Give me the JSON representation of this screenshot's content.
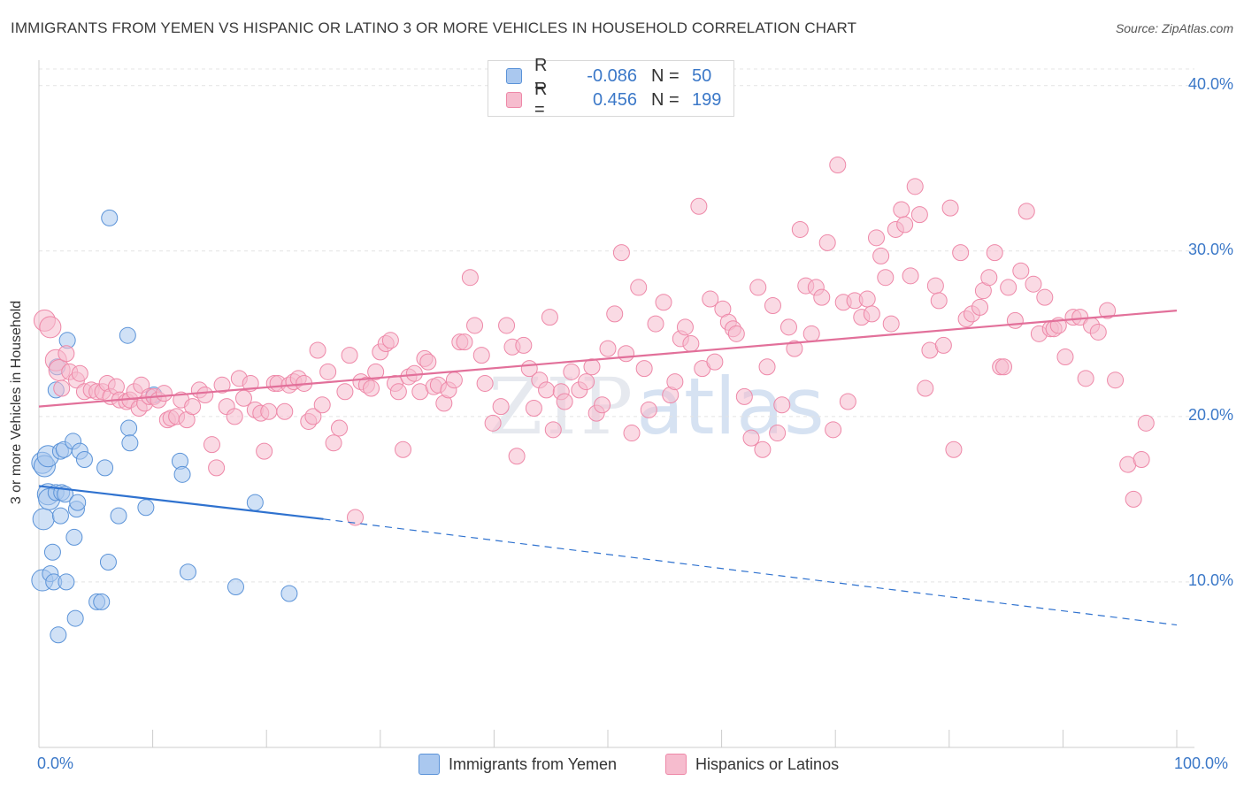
{
  "title": "IMMIGRANTS FROM YEMEN VS HISPANIC OR LATINO 3 OR MORE VEHICLES IN HOUSEHOLD CORRELATION CHART",
  "source": "Source: ZipAtlas.com",
  "watermark": {
    "zip": "ZIP",
    "atlas": "atlas"
  },
  "legend": {
    "rows": [
      {
        "r_label": "R =",
        "r_value": "-0.086",
        "n_label": "N =",
        "n_value": "50",
        "color": "#aac8ef"
      },
      {
        "r_label": "R =",
        "r_value": "0.456",
        "n_label": "N =",
        "n_value": "199",
        "color": "#f6bcce"
      }
    ]
  },
  "chart_data": {
    "type": "scatter",
    "ylabel": "3 or more Vehicles in Household",
    "xlim": [
      0,
      100
    ],
    "ylim": [
      0,
      41
    ],
    "x_tick_labels": [
      "0.0%",
      "100.0%"
    ],
    "y_ticks": [
      10,
      20,
      30,
      40
    ],
    "y_tick_labels": [
      "10.0%",
      "20.0%",
      "30.0%",
      "40.0%"
    ],
    "grid": true,
    "series": [
      {
        "name": "Immigrants from Yemen",
        "color": "#5b93d8",
        "fill": "#aac8ef",
        "trend": {
          "x0": 0,
          "y0": 15.8,
          "x1": 25,
          "y1": 13.8,
          "dash_to_x": 100,
          "dash_to_y": 7.4,
          "color": "#2f72cf"
        },
        "points": [
          [
            0.3,
            17.2
          ],
          [
            0.5,
            17.0
          ],
          [
            0.4,
            13.8
          ],
          [
            0.3,
            10.1
          ],
          [
            0.8,
            17.6
          ],
          [
            0.8,
            15.3
          ],
          [
            0.9,
            15.0
          ],
          [
            1.0,
            10.5
          ],
          [
            1.2,
            11.8
          ],
          [
            1.3,
            10.0
          ],
          [
            1.5,
            21.6
          ],
          [
            1.6,
            23.0
          ],
          [
            1.5,
            15.4
          ],
          [
            1.7,
            6.8
          ],
          [
            1.9,
            14.0
          ],
          [
            1.9,
            17.9
          ],
          [
            2.0,
            15.4
          ],
          [
            2.2,
            18.0
          ],
          [
            2.3,
            15.3
          ],
          [
            2.4,
            10.0
          ],
          [
            2.5,
            24.6
          ],
          [
            3.0,
            18.5
          ],
          [
            3.1,
            12.7
          ],
          [
            3.2,
            7.8
          ],
          [
            3.3,
            14.4
          ],
          [
            3.4,
            14.8
          ],
          [
            3.6,
            17.9
          ],
          [
            4.0,
            17.4
          ],
          [
            5.1,
            8.8
          ],
          [
            5.5,
            8.8
          ],
          [
            5.8,
            16.9
          ],
          [
            6.1,
            11.2
          ],
          [
            6.2,
            32.0
          ],
          [
            7.0,
            14.0
          ],
          [
            7.8,
            24.9
          ],
          [
            7.9,
            19.3
          ],
          [
            8.0,
            18.4
          ],
          [
            9.4,
            14.5
          ],
          [
            10.1,
            21.3
          ],
          [
            12.4,
            17.3
          ],
          [
            12.6,
            16.5
          ],
          [
            13.1,
            10.6
          ],
          [
            17.3,
            9.7
          ],
          [
            19.0,
            14.8
          ],
          [
            22.0,
            9.3
          ]
        ]
      },
      {
        "name": "Hispanics or Latinos",
        "color": "#ee88a8",
        "fill": "#f6bcce",
        "trend": {
          "x0": 0,
          "y0": 20.6,
          "x1": 100,
          "y1": 26.4,
          "color": "#e2709a"
        },
        "points": [
          [
            0.5,
            25.8
          ],
          [
            1.0,
            25.4
          ],
          [
            1.5,
            23.4
          ],
          [
            1.8,
            22.8
          ],
          [
            2.0,
            21.7
          ],
          [
            2.4,
            23.8
          ],
          [
            2.7,
            22.7
          ],
          [
            3.3,
            22.2
          ],
          [
            3.6,
            22.6
          ],
          [
            4.0,
            21.5
          ],
          [
            4.6,
            21.6
          ],
          [
            5.1,
            21.5
          ],
          [
            5.6,
            21.5
          ],
          [
            6.0,
            22.0
          ],
          [
            6.3,
            21.2
          ],
          [
            6.8,
            21.8
          ],
          [
            7.1,
            21.0
          ],
          [
            7.7,
            20.9
          ],
          [
            8.0,
            21.0
          ],
          [
            8.4,
            21.5
          ],
          [
            8.8,
            20.5
          ],
          [
            9.0,
            21.9
          ],
          [
            9.3,
            20.8
          ],
          [
            9.7,
            21.2
          ],
          [
            10.1,
            21.2
          ],
          [
            10.5,
            21.0
          ],
          [
            11.0,
            21.4
          ],
          [
            11.3,
            19.8
          ],
          [
            11.6,
            19.9
          ],
          [
            12.1,
            20.0
          ],
          [
            12.5,
            21.0
          ],
          [
            13.0,
            19.8
          ],
          [
            13.5,
            20.6
          ],
          [
            14.1,
            21.6
          ],
          [
            14.6,
            21.3
          ],
          [
            15.2,
            18.3
          ],
          [
            15.6,
            16.9
          ],
          [
            16.1,
            21.9
          ],
          [
            16.5,
            20.6
          ],
          [
            17.2,
            20.0
          ],
          [
            17.6,
            22.3
          ],
          [
            18.0,
            21.1
          ],
          [
            18.6,
            22.0
          ],
          [
            19.0,
            20.4
          ],
          [
            19.5,
            20.2
          ],
          [
            19.8,
            17.9
          ],
          [
            20.2,
            20.3
          ],
          [
            20.7,
            22.0
          ],
          [
            21.0,
            22.0
          ],
          [
            21.6,
            20.3
          ],
          [
            22.0,
            21.9
          ],
          [
            22.4,
            22.1
          ],
          [
            22.8,
            22.3
          ],
          [
            23.3,
            22.0
          ],
          [
            23.7,
            19.7
          ],
          [
            24.1,
            20.0
          ],
          [
            24.5,
            24.0
          ],
          [
            24.9,
            20.7
          ],
          [
            25.4,
            22.7
          ],
          [
            25.9,
            18.4
          ],
          [
            26.4,
            19.3
          ],
          [
            26.9,
            21.5
          ],
          [
            27.3,
            23.7
          ],
          [
            27.8,
            13.9
          ],
          [
            28.3,
            22.1
          ],
          [
            28.8,
            21.9
          ],
          [
            29.2,
            21.7
          ],
          [
            29.6,
            22.7
          ],
          [
            30.0,
            23.9
          ],
          [
            30.5,
            24.4
          ],
          [
            30.9,
            24.6
          ],
          [
            31.3,
            22.0
          ],
          [
            31.6,
            21.5
          ],
          [
            32.0,
            18.0
          ],
          [
            32.5,
            22.4
          ],
          [
            33.0,
            22.6
          ],
          [
            33.5,
            21.5
          ],
          [
            33.9,
            23.5
          ],
          [
            34.2,
            23.3
          ],
          [
            34.7,
            21.8
          ],
          [
            35.1,
            21.9
          ],
          [
            35.6,
            20.8
          ],
          [
            36.0,
            21.6
          ],
          [
            36.5,
            22.2
          ],
          [
            37.0,
            24.5
          ],
          [
            37.4,
            24.5
          ],
          [
            37.9,
            28.4
          ],
          [
            38.3,
            25.5
          ],
          [
            38.9,
            23.7
          ],
          [
            39.2,
            22.0
          ],
          [
            39.9,
            19.6
          ],
          [
            40.6,
            20.6
          ],
          [
            41.1,
            25.5
          ],
          [
            41.6,
            24.2
          ],
          [
            42.0,
            17.6
          ],
          [
            42.6,
            24.3
          ],
          [
            43.1,
            22.9
          ],
          [
            43.5,
            20.5
          ],
          [
            44.0,
            22.2
          ],
          [
            44.6,
            21.6
          ],
          [
            44.9,
            26.0
          ],
          [
            45.2,
            19.2
          ],
          [
            45.9,
            21.5
          ],
          [
            46.2,
            20.9
          ],
          [
            46.8,
            22.7
          ],
          [
            47.5,
            21.6
          ],
          [
            48.1,
            22.1
          ],
          [
            48.6,
            23.0
          ],
          [
            49.0,
            20.2
          ],
          [
            49.5,
            20.7
          ],
          [
            50.0,
            24.1
          ],
          [
            50.6,
            26.2
          ],
          [
            51.2,
            29.9
          ],
          [
            51.6,
            23.8
          ],
          [
            52.1,
            19.0
          ],
          [
            52.7,
            27.8
          ],
          [
            53.2,
            22.9
          ],
          [
            53.6,
            20.4
          ],
          [
            54.2,
            25.6
          ],
          [
            54.9,
            26.9
          ],
          [
            55.5,
            21.3
          ],
          [
            55.9,
            22.1
          ],
          [
            56.4,
            24.7
          ],
          [
            56.8,
            25.4
          ],
          [
            57.3,
            24.4
          ],
          [
            58.0,
            32.7
          ],
          [
            58.3,
            22.9
          ],
          [
            59.0,
            27.1
          ],
          [
            59.4,
            23.3
          ],
          [
            60.1,
            26.5
          ],
          [
            60.6,
            25.7
          ],
          [
            61.0,
            25.3
          ],
          [
            61.3,
            25.0
          ],
          [
            62.0,
            21.2
          ],
          [
            62.6,
            18.7
          ],
          [
            63.2,
            27.8
          ],
          [
            63.6,
            18.0
          ],
          [
            64.0,
            23.0
          ],
          [
            64.5,
            26.7
          ],
          [
            64.9,
            19.0
          ],
          [
            65.3,
            20.7
          ],
          [
            65.9,
            25.4
          ],
          [
            66.4,
            24.1
          ],
          [
            66.9,
            31.3
          ],
          [
            67.4,
            27.9
          ],
          [
            67.9,
            25.0
          ],
          [
            68.3,
            27.8
          ],
          [
            68.8,
            27.2
          ],
          [
            69.3,
            30.5
          ],
          [
            69.8,
            19.2
          ],
          [
            70.2,
            35.2
          ],
          [
            70.7,
            26.9
          ],
          [
            71.1,
            20.9
          ],
          [
            71.7,
            27.0
          ],
          [
            72.3,
            26.0
          ],
          [
            72.8,
            27.1
          ],
          [
            73.2,
            26.2
          ],
          [
            73.6,
            30.8
          ],
          [
            74.0,
            29.7
          ],
          [
            74.4,
            28.4
          ],
          [
            74.9,
            25.6
          ],
          [
            75.3,
            31.3
          ],
          [
            75.8,
            32.5
          ],
          [
            76.1,
            31.6
          ],
          [
            76.6,
            28.5
          ],
          [
            77.0,
            33.9
          ],
          [
            77.4,
            32.2
          ],
          [
            77.9,
            21.7
          ],
          [
            78.3,
            24.0
          ],
          [
            78.8,
            27.9
          ],
          [
            79.1,
            27.0
          ],
          [
            79.5,
            24.3
          ],
          [
            80.1,
            32.6
          ],
          [
            80.4,
            18.0
          ],
          [
            81.0,
            29.9
          ],
          [
            81.5,
            25.9
          ],
          [
            82.0,
            26.2
          ],
          [
            82.7,
            26.6
          ],
          [
            83.0,
            27.6
          ],
          [
            83.5,
            28.4
          ],
          [
            84.0,
            29.9
          ],
          [
            84.5,
            23.0
          ],
          [
            84.8,
            23.0
          ],
          [
            85.2,
            27.8
          ],
          [
            85.8,
            25.8
          ],
          [
            86.3,
            28.8
          ],
          [
            86.8,
            32.4
          ],
          [
            87.4,
            28.0
          ],
          [
            87.9,
            25.0
          ],
          [
            88.4,
            27.2
          ],
          [
            88.9,
            25.3
          ],
          [
            89.2,
            25.3
          ],
          [
            89.6,
            25.5
          ],
          [
            90.2,
            23.6
          ],
          [
            90.9,
            26.0
          ],
          [
            91.5,
            26.0
          ],
          [
            92.0,
            22.3
          ],
          [
            92.5,
            25.5
          ],
          [
            93.1,
            25.1
          ],
          [
            93.9,
            26.4
          ],
          [
            94.6,
            22.2
          ],
          [
            95.7,
            17.1
          ],
          [
            96.2,
            15.0
          ],
          [
            96.9,
            17.4
          ],
          [
            97.3,
            19.6
          ]
        ]
      }
    ]
  },
  "bottom_legend": [
    {
      "label": "Immigrants from Yemen",
      "color": "#aac8ef"
    },
    {
      "label": "Hispanics or Latinos",
      "color": "#f6bcce"
    }
  ]
}
